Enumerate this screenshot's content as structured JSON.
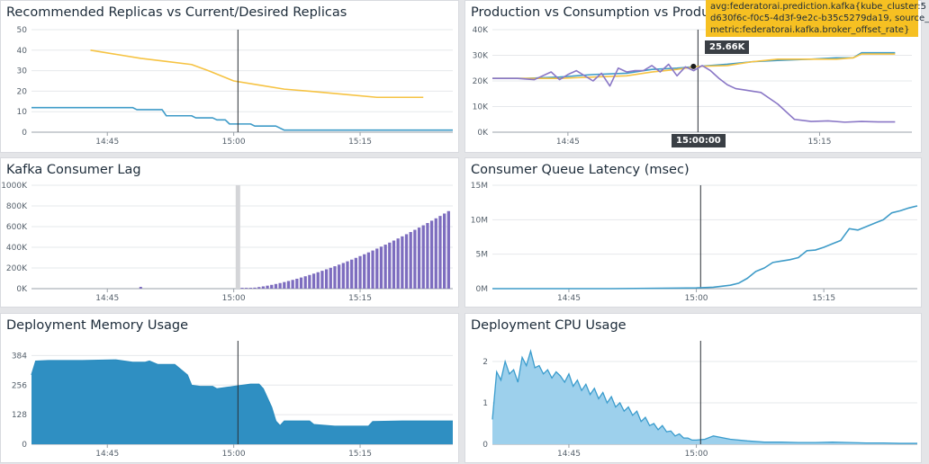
{
  "panels": {
    "replicas": {
      "title": "Recommended Replicas vs Current/Desired Replicas",
      "chart_data": {
        "type": "line",
        "ylim": [
          0,
          50
        ],
        "yticks": [
          "0",
          "10",
          "20",
          "30",
          "40",
          "50"
        ],
        "xlim": [
          36,
          86
        ],
        "xticks": [
          {
            "v": 45,
            "label": "14:45"
          },
          {
            "v": 60,
            "label": "15:00"
          },
          {
            "v": 75,
            "label": "15:15"
          }
        ],
        "cursor": 60.5,
        "series": [
          {
            "color": "#f6c343",
            "x": [
              43,
              46,
              49,
              52,
              55,
              57,
              60,
              63,
              66,
              69,
              73,
              77,
              80,
              82.5
            ],
            "y": [
              40,
              38,
              36,
              34.5,
              33,
              30,
              25,
              23,
              21,
              20,
              18.5,
              17,
              17,
              17
            ]
          },
          {
            "color": "#3e9bc8",
            "x": [
              36,
              41,
              48,
              48.5,
              51.5,
              52,
              55,
              55.5,
              57.5,
              58,
              59,
              59.5,
              62,
              62.5,
              65,
              66,
              70,
              86
            ],
            "y": [
              12,
              12,
              12,
              11,
              11,
              8,
              8,
              7,
              7,
              6,
              6,
              4,
              4,
              3,
              3,
              1,
              1,
              1
            ]
          }
        ]
      }
    },
    "production": {
      "title": "Production vs Consumption vs Production",
      "chart_data": {
        "type": "line",
        "ylim": [
          0,
          40000
        ],
        "yticks": [
          "0K",
          "10K",
          "20K",
          "30K",
          "40K"
        ],
        "xlim": [
          36,
          86
        ],
        "xticks": [
          {
            "v": 45,
            "label": "14:45"
          },
          {
            "v": 75,
            "label": "15:15"
          }
        ],
        "cursor": 60.5,
        "series": [
          {
            "color": "#3e9bc8",
            "x": [
              36,
              40,
              44,
              48,
              52,
              55,
              58,
              60.5,
              64,
              67,
              70,
              74,
              77,
              79,
              80,
              84
            ],
            "y": [
              21000,
              21000,
              21500,
              22500,
              23000,
              24500,
              25000,
              25660,
              26500,
              27500,
              28000,
              28500,
              29000,
              29000,
              31000,
              31000
            ]
          },
          {
            "color": "#f6c343",
            "x": [
              36,
              40,
              44,
              48,
              52,
              55,
              58,
              60.5,
              64,
              67,
              70,
              74,
              77,
              79,
              80,
              84
            ],
            "y": [
              21000,
              21000,
              21000,
              21500,
              22000,
              23500,
              24500,
              25660,
              26000,
              27500,
              28500,
              28500,
              28500,
              29000,
              30500,
              30500
            ]
          },
          {
            "color": "#8a77c6",
            "x": [
              36,
              39,
              41,
              43,
              44,
              45,
              46,
              48,
              49,
              50,
              51,
              52,
              53,
              54,
              55,
              56,
              57,
              58,
              59,
              60,
              61,
              62,
              63,
              64,
              65,
              66,
              67,
              68,
              70,
              72,
              74,
              76,
              78,
              80,
              82,
              84
            ],
            "y": [
              21000,
              21000,
              20500,
              23500,
              20500,
              22500,
              24000,
              20000,
              23000,
              18000,
              25000,
              23500,
              24000,
              24000,
              26000,
              23500,
              26500,
              22000,
              25500,
              24000,
              26000,
              24000,
              21000,
              18500,
              17000,
              16500,
              16000,
              15500,
              11000,
              5000,
              4200,
              4400,
              3900,
              4200,
              4000,
              4000
            ]
          }
        ],
        "tooltip": {
          "lines": [
            "avg:federatorai.prediction.kafka{kube_cluster:5",
            "d630f6c-f0c5-4d3f-9e2c-b35c5279da19, source_",
            "metric:federatorai.kafka.broker_offset_rate}"
          ],
          "value": "25.66K",
          "time": "15:00:00"
        }
      }
    },
    "lag": {
      "title": "Kafka Consumer Lag",
      "chart_data": {
        "type": "bar",
        "ylim": [
          0,
          1000000
        ],
        "yticks": [
          "0K",
          "200K",
          "400K",
          "600K",
          "800K",
          "1000K"
        ],
        "xlim": [
          36,
          86
        ],
        "xticks": [
          {
            "v": 45,
            "label": "14:45"
          },
          {
            "v": 60,
            "label": "15:00"
          },
          {
            "v": 75,
            "label": "15:15"
          }
        ],
        "highlight": 60.5,
        "bar_start": 61,
        "bar_end": 85.5,
        "bar_step": 0.5,
        "bar_growth": 1.55,
        "bar_max": 750000,
        "color": "#7d6dbf"
      }
    },
    "latency": {
      "title": "Consumer Queue Latency (msec)",
      "chart_data": {
        "type": "line",
        "ylim": [
          0,
          15000000
        ],
        "yticks": [
          "0M",
          "5M",
          "10M",
          "15M"
        ],
        "xlim": [
          36,
          86
        ],
        "xticks": [
          {
            "v": 45,
            "label": "14:45"
          },
          {
            "v": 60,
            "label": "15:00"
          },
          {
            "v": 75,
            "label": "15:15"
          }
        ],
        "cursor": 60.5,
        "series": [
          {
            "color": "#3e9bc8",
            "x": [
              36,
              50,
              60,
              62,
              64,
              65,
              66,
              67,
              68,
              69,
              70,
              71,
              72,
              73,
              74,
              75,
              76,
              77,
              78,
              79,
              80,
              81,
              82,
              83,
              84,
              85,
              86
            ],
            "y": [
              0,
              0,
              100000,
              200000,
              500000,
              800000,
              1500000,
              2500000,
              3000000,
              3800000,
              4000000,
              4200000,
              4500000,
              5500000,
              5600000,
              6000000,
              6500000,
              7000000,
              8700000,
              8500000,
              9000000,
              9500000,
              10000000,
              11000000,
              11300000,
              11700000,
              12000000
            ]
          }
        ]
      }
    },
    "memory": {
      "title": "Deployment Memory Usage",
      "chart_data": {
        "type": "area",
        "ylim": [
          0,
          448
        ],
        "yticks": [
          {
            "v": 0,
            "label": "0"
          },
          {
            "v": 128,
            "label": "128"
          },
          {
            "v": 256,
            "label": "256"
          },
          {
            "v": 384,
            "label": "384"
          }
        ],
        "xlim": [
          36,
          86
        ],
        "xticks": [
          {
            "v": 45,
            "label": "14:45"
          },
          {
            "v": 60,
            "label": "15:00"
          },
          {
            "v": 75,
            "label": "15:15"
          }
        ],
        "cursor": 60.5,
        "color": "#2b8cbf",
        "fill": "#2f8fc2",
        "x": [
          36,
          36.5,
          38,
          42,
          46,
          48,
          49.5,
          50,
          51,
          53,
          54.5,
          55,
          56,
          57.5,
          58,
          60,
          62,
          63,
          63.5,
          64,
          64.5,
          65,
          65.5,
          66,
          69,
          69.5,
          72,
          76,
          76.5,
          80,
          85,
          86
        ],
        "y": [
          300,
          360,
          362,
          362,
          365,
          355,
          355,
          360,
          345,
          345,
          300,
          255,
          250,
          250,
          240,
          250,
          260,
          260,
          240,
          200,
          160,
          100,
          80,
          100,
          100,
          85,
          78,
          78,
          98,
          100,
          100,
          100
        ]
      }
    },
    "cpu": {
      "title": "Deployment CPU Usage",
      "chart_data": {
        "type": "area",
        "ylim": [
          0,
          2.5
        ],
        "yticks": [
          {
            "v": 0,
            "label": "0"
          },
          {
            "v": 1,
            "label": "1"
          },
          {
            "v": 2,
            "label": "2"
          }
        ],
        "xlim": [
          36,
          86
        ],
        "xticks": [
          {
            "v": 45,
            "label": "14:45"
          },
          {
            "v": 60,
            "label": "15:00"
          }
        ],
        "cursor": 60.5,
        "color": "#3a9ccd",
        "fill": "#9dd0ec",
        "x": [
          36,
          36.5,
          37,
          37.5,
          38,
          38.5,
          39,
          39.5,
          40,
          40.5,
          41,
          41.5,
          42,
          42.5,
          43,
          43.5,
          44,
          44.5,
          45,
          45.5,
          46,
          46.5,
          47,
          47.5,
          48,
          48.5,
          49,
          49.5,
          50,
          50.5,
          51,
          51.5,
          52,
          52.5,
          53,
          53.5,
          54,
          54.5,
          55,
          55.5,
          56,
          56.5,
          57,
          57.5,
          58,
          58.5,
          59,
          59.5,
          60,
          61,
          62,
          64,
          66,
          68,
          70,
          72,
          74,
          76,
          78,
          80,
          82,
          84,
          86
        ],
        "y": [
          0.6,
          1.75,
          1.55,
          2.0,
          1.7,
          1.8,
          1.5,
          2.1,
          1.9,
          2.25,
          1.85,
          1.9,
          1.7,
          1.8,
          1.6,
          1.75,
          1.65,
          1.5,
          1.7,
          1.4,
          1.55,
          1.3,
          1.45,
          1.2,
          1.35,
          1.1,
          1.25,
          1.0,
          1.15,
          0.9,
          1.0,
          0.8,
          0.9,
          0.7,
          0.8,
          0.55,
          0.65,
          0.45,
          0.5,
          0.35,
          0.45,
          0.3,
          0.32,
          0.2,
          0.25,
          0.15,
          0.15,
          0.1,
          0.1,
          0.12,
          0.2,
          0.12,
          0.08,
          0.05,
          0.05,
          0.04,
          0.04,
          0.05,
          0.04,
          0.03,
          0.03,
          0.02,
          0.02
        ]
      }
    }
  }
}
